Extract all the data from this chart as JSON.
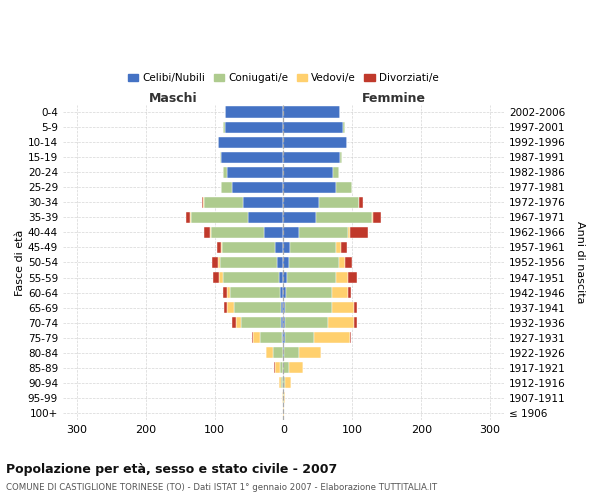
{
  "age_groups": [
    "0-4",
    "5-9",
    "10-14",
    "15-19",
    "20-24",
    "25-29",
    "30-34",
    "35-39",
    "40-44",
    "45-49",
    "50-54",
    "55-59",
    "60-64",
    "65-69",
    "70-74",
    "75-79",
    "80-84",
    "85-89",
    "90-94",
    "95-99",
    "100+"
  ],
  "birth_years": [
    "2002-2006",
    "1997-2001",
    "1992-1996",
    "1987-1991",
    "1982-1986",
    "1977-1981",
    "1972-1976",
    "1967-1971",
    "1962-1966",
    "1957-1961",
    "1952-1956",
    "1947-1951",
    "1942-1946",
    "1937-1941",
    "1932-1936",
    "1927-1931",
    "1922-1926",
    "1917-1921",
    "1912-1916",
    "1907-1911",
    "≤ 1906"
  ],
  "males_celibe": [
    85,
    85,
    95,
    90,
    82,
    75,
    58,
    52,
    28,
    12,
    10,
    6,
    5,
    4,
    3,
    2,
    1,
    0,
    0,
    0,
    0
  ],
  "males_coniugato": [
    0,
    2,
    0,
    2,
    6,
    16,
    57,
    82,
    77,
    77,
    82,
    82,
    72,
    68,
    58,
    32,
    14,
    5,
    3,
    1,
    0
  ],
  "males_vedovo": [
    0,
    0,
    0,
    0,
    0,
    0,
    1,
    1,
    1,
    2,
    3,
    5,
    5,
    10,
    8,
    10,
    10,
    7,
    4,
    1,
    0
  ],
  "males_divorziato": [
    0,
    0,
    0,
    0,
    0,
    0,
    2,
    7,
    9,
    6,
    9,
    9,
    5,
    4,
    6,
    2,
    0,
    1,
    0,
    0,
    0
  ],
  "females_nubile": [
    82,
    87,
    92,
    82,
    72,
    77,
    52,
    47,
    22,
    10,
    8,
    5,
    4,
    3,
    3,
    2,
    1,
    0,
    0,
    0,
    0
  ],
  "females_coniugata": [
    0,
    2,
    0,
    3,
    9,
    22,
    57,
    82,
    72,
    67,
    72,
    72,
    67,
    67,
    62,
    42,
    22,
    8,
    3,
    1,
    0
  ],
  "females_vedova": [
    0,
    0,
    0,
    0,
    0,
    0,
    1,
    1,
    2,
    6,
    9,
    17,
    22,
    32,
    37,
    52,
    32,
    20,
    8,
    2,
    1
  ],
  "females_divorziata": [
    0,
    0,
    0,
    0,
    0,
    0,
    5,
    11,
    27,
    9,
    11,
    13,
    5,
    5,
    5,
    2,
    0,
    1,
    0,
    0,
    0
  ],
  "colors_celibe": "#4472C4",
  "colors_coniugato": "#AECB8E",
  "colors_vedovo": "#FFD06E",
  "colors_divorziato": "#C0392B",
  "xlim": 320,
  "title": "Popolazione per età, sesso e stato civile - 2007",
  "subtitle": "COMUNE DI CASTIGLIONE TORINESE (TO) - Dati ISTAT 1° gennaio 2007 - Elaborazione TUTTITALIA.IT",
  "ylabel_left": "Fasce di età",
  "ylabel_right": "Anni di nascita",
  "header_left": "Maschi",
  "header_right": "Femmine",
  "legend_labels": [
    "Celibi/Nubili",
    "Coniugati/e",
    "Vedovi/e",
    "Divorziati/e"
  ],
  "bg_color": "#FFFFFF",
  "grid_color": "#CCCCCC"
}
